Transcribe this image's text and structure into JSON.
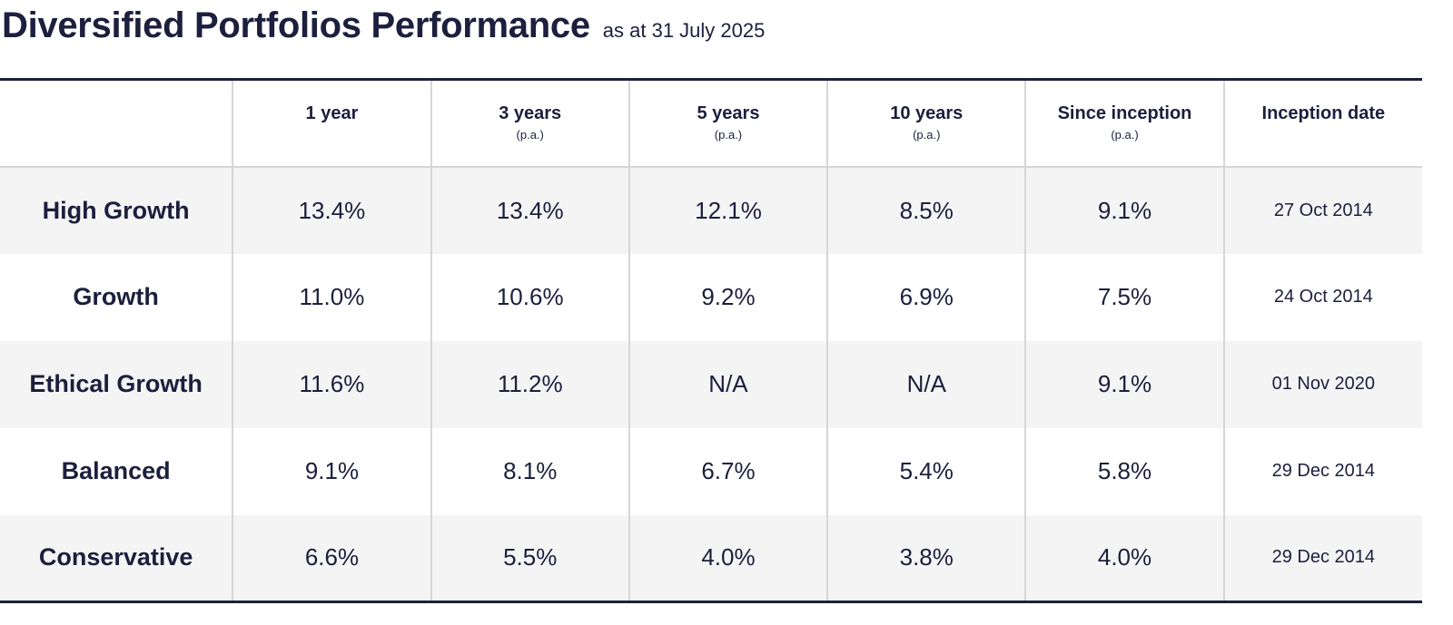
{
  "title": "Diversified Portfolios Performance",
  "subtitle": "as at 31 July 2025",
  "table": {
    "columns": [
      {
        "label": "",
        "sub": ""
      },
      {
        "label": "1 year",
        "sub": ""
      },
      {
        "label": "3 years",
        "sub": "(p.a.)"
      },
      {
        "label": "5 years",
        "sub": "(p.a.)"
      },
      {
        "label": "10 years",
        "sub": "(p.a.)"
      },
      {
        "label": "Since inception",
        "sub": "(p.a.)"
      },
      {
        "label": "Inception date",
        "sub": ""
      }
    ],
    "rows": [
      {
        "name": "High Growth",
        "y1": "13.4%",
        "y3": "13.4%",
        "y5": "12.1%",
        "y10": "8.5%",
        "since": "9.1%",
        "date": "27 Oct 2014"
      },
      {
        "name": "Growth",
        "y1": "11.0%",
        "y3": "10.6%",
        "y5": "9.2%",
        "y10": "6.9%",
        "since": "7.5%",
        "date": "24 Oct 2014"
      },
      {
        "name": "Ethical Growth",
        "y1": "11.6%",
        "y3": "11.2%",
        "y5": "N/A",
        "y10": "N/A",
        "since": "9.1%",
        "date": "01 Nov 2020"
      },
      {
        "name": "Balanced",
        "y1": "9.1%",
        "y3": "8.1%",
        "y5": "6.7%",
        "y10": "5.4%",
        "since": "5.8%",
        "date": "29 Dec 2014"
      },
      {
        "name": "Conservative",
        "y1": "6.6%",
        "y3": "5.5%",
        "y5": "4.0%",
        "y10": "3.8%",
        "since": "4.0%",
        "date": "29 Dec 2014"
      }
    ]
  },
  "colors": {
    "text": "#1c1f3d",
    "rule": "#1c1f3d",
    "divider": "#d6d6d6",
    "row_alt": "#f4f4f4"
  }
}
